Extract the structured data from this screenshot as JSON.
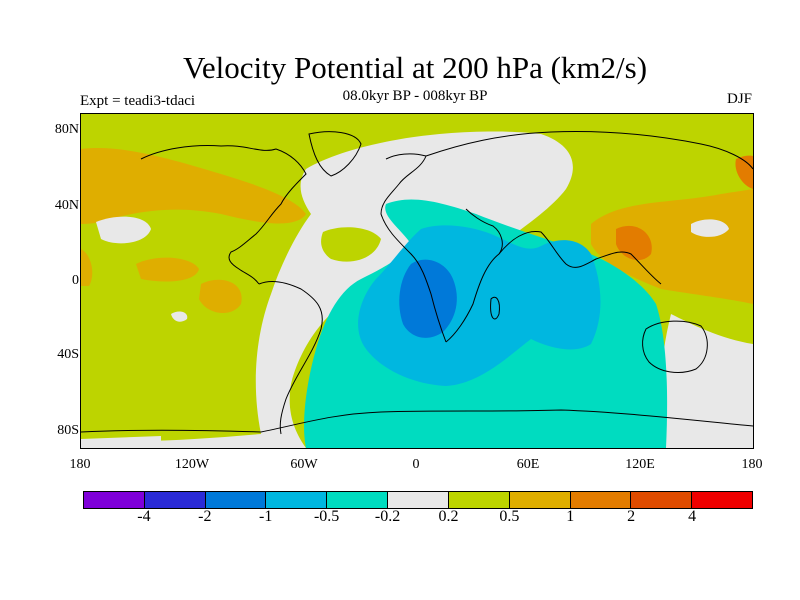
{
  "title": "Velocity Potential at 200 hPa (km2/s)",
  "subtitle": "08.0kyr BP - 008kyr BP",
  "left_label": "Expt = teadi3-tdaci",
  "right_label": "DJF",
  "lat_labels": [
    "80N",
    "40N",
    "0",
    "40S",
    "80S"
  ],
  "lon_labels": [
    "180",
    "120W",
    "60W",
    "0",
    "60E",
    "120E",
    "180"
  ],
  "colorbar": {
    "colors": [
      "#7f00d9",
      "#2b2bd6",
      "#0079d9",
      "#00b7e0",
      "#00dcc0",
      "#e8e8e8",
      "#bdd400",
      "#dfae00",
      "#e37c00",
      "#e04c00",
      "#ef0000"
    ],
    "labels": [
      "-4",
      "-2",
      "-1",
      "-0.5",
      "-0.2",
      "0.2",
      "0.5",
      "1",
      "2",
      "4"
    ]
  },
  "map_colors": {
    "ocean_default": "#bdd400",
    "neutral": "#e8e8e8",
    "teal": "#00dcc0",
    "light_blue": "#00b7e0",
    "mid_blue": "#0079d9",
    "orange_light": "#dfae00",
    "orange": "#e37c00",
    "coastline": "#000000"
  }
}
